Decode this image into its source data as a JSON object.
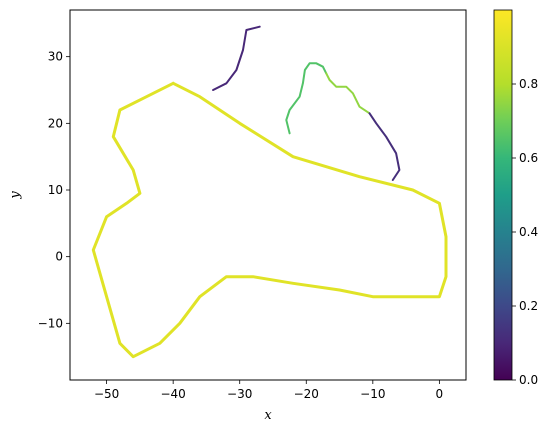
{
  "chart_data": {
    "type": "line",
    "title": "",
    "xlabel": "x",
    "ylabel": "y",
    "xlim": [
      -55.5,
      4
    ],
    "ylim": [
      -18.5,
      37
    ],
    "xticks": [
      -50,
      -40,
      -30,
      -20,
      -10,
      0
    ],
    "yticks": [
      -10,
      0,
      10,
      20,
      30
    ],
    "grid": false,
    "colormap": "viridis",
    "colorbar": {
      "range": [
        0.0,
        1.0
      ],
      "ticks": [
        0.0,
        0.2,
        0.4,
        0.6,
        0.8
      ]
    },
    "series": [
      {
        "value_color": 0.92,
        "points": [
          [
            -40,
            26
          ],
          [
            -36,
            24
          ],
          [
            -30,
            20
          ],
          [
            -22,
            15
          ],
          [
            -12,
            12
          ],
          [
            -4,
            10
          ],
          [
            0,
            8
          ],
          [
            1,
            3
          ],
          [
            1,
            -3
          ],
          [
            0,
            -6
          ],
          [
            -5,
            -6
          ],
          [
            -10,
            -6
          ],
          [
            -15,
            -5
          ],
          [
            -22,
            -4
          ],
          [
            -28,
            -3
          ],
          [
            -32,
            -3
          ],
          [
            -36,
            -6
          ],
          [
            -39,
            -10
          ],
          [
            -42,
            -13
          ],
          [
            -46,
            -15
          ],
          [
            -48,
            -13
          ],
          [
            -50,
            -6
          ],
          [
            -52,
            1
          ],
          [
            -50,
            6
          ],
          [
            -47,
            8
          ],
          [
            -45,
            9.5
          ],
          [
            -46,
            13
          ],
          [
            -49,
            18
          ],
          [
            -48,
            22
          ],
          [
            -44,
            24
          ],
          [
            -40,
            26
          ]
        ]
      },
      {
        "value_color": 0.1,
        "points": [
          [
            -27,
            34.5
          ],
          [
            -29,
            34
          ],
          [
            -29.5,
            31
          ],
          [
            -30.5,
            28
          ],
          [
            -32,
            26
          ],
          [
            -34,
            25
          ]
        ]
      },
      {
        "value_color": 0.65,
        "points": [
          [
            -22.5,
            18.5
          ],
          [
            -23,
            20.5
          ],
          [
            -22.5,
            22
          ],
          [
            -21,
            24
          ],
          [
            -20.5,
            26
          ],
          [
            -20.2,
            28
          ],
          [
            -19.5,
            29
          ],
          [
            -18.5,
            29
          ],
          [
            -17.5,
            28.5
          ],
          [
            -17,
            27.5
          ]
        ]
      },
      {
        "value_color": 0.75,
        "points": [
          [
            -17,
            27.5
          ],
          [
            -16.5,
            26.5
          ],
          [
            -15.5,
            25.5
          ],
          [
            -14,
            25.5
          ],
          [
            -13,
            24.5
          ],
          [
            -12,
            22.5
          ],
          [
            -10.5,
            21.5
          ]
        ]
      },
      {
        "value_color": 0.12,
        "points": [
          [
            -10.5,
            21.5
          ],
          [
            -9.5,
            20
          ],
          [
            -8,
            18
          ],
          [
            -6.5,
            15.5
          ],
          [
            -6,
            13
          ],
          [
            -7,
            11.5
          ]
        ]
      }
    ]
  }
}
